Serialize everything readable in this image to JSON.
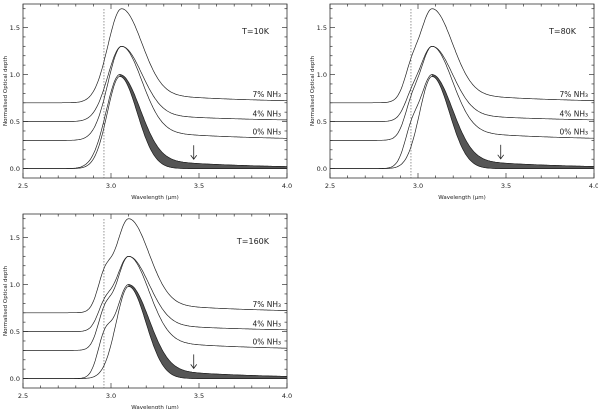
{
  "chart_data": [
    {
      "type": "line",
      "annotation": "T=10K",
      "xlabel": "Wavelength (μm)",
      "ylabel": "Normalised Optical depth",
      "xlim": [
        2.5,
        4.0
      ],
      "ylim": [
        -0.1,
        1.75
      ],
      "xticks": [
        "2.5",
        "3.0",
        "3.5",
        "4.0"
      ],
      "yticks": [
        "0.0",
        "0.5",
        "1.0",
        "1.5"
      ],
      "dotted_line_x": 2.96,
      "arrow_x": 3.47,
      "curve_labels": [
        "7% NH₃",
        "4% NH₃",
        "0% NH₃"
      ],
      "series": [
        {
          "offset": 0.7,
          "peak": 1.0,
          "peak_x": 3.06,
          "shoulder": 0.0
        },
        {
          "offset": 0.5,
          "peak": 0.8,
          "peak_x": 3.06,
          "shoulder": 0.0
        },
        {
          "offset": 0.3,
          "peak": 1.0,
          "peak_x": 3.06,
          "shoulder": 0.0
        },
        {
          "offset": 0.0,
          "peak": 1.0,
          "peak_x": 3.05,
          "shoulder": 0.0
        }
      ]
    },
    {
      "type": "line",
      "annotation": "T=80K",
      "xlabel": "Wavelength (μm)",
      "ylabel": "Normalised Optical depth",
      "xlim": [
        2.5,
        4.0
      ],
      "ylim": [
        -0.1,
        1.75
      ],
      "xticks": [
        "2.5",
        "3.0",
        "3.5",
        "4.0"
      ],
      "yticks": [
        "0.0",
        "0.5",
        "1.0",
        "1.5"
      ],
      "dotted_line_x": 2.96,
      "arrow_x": 3.47,
      "curve_labels": [
        "7% NH₃",
        "4% NH₃",
        "0% NH₃"
      ],
      "series": [
        {
          "offset": 0.7,
          "peak": 1.0,
          "peak_x": 3.08,
          "shoulder": 0.25
        },
        {
          "offset": 0.5,
          "peak": 0.8,
          "peak_x": 3.08,
          "shoulder": 0.2
        },
        {
          "offset": 0.3,
          "peak": 1.0,
          "peak_x": 3.08,
          "shoulder": 0.25
        },
        {
          "offset": 0.0,
          "peak": 1.0,
          "peak_x": 3.08,
          "shoulder": 0.3
        }
      ]
    },
    {
      "type": "line",
      "annotation": "T=160K",
      "xlabel": "Wavelength (μm)",
      "ylabel": "Normalised Optical depth",
      "xlim": [
        2.5,
        4.0
      ],
      "ylim": [
        -0.1,
        1.75
      ],
      "xticks": [
        "2.5",
        "3.0",
        "3.5",
        "4.0"
      ],
      "yticks": [
        "0.0",
        "0.5",
        "1.0",
        "1.5"
      ],
      "dotted_line_x": 2.96,
      "arrow_x": 3.47,
      "curve_labels": [
        "7% NH₃",
        "4% NH₃",
        "0% NH₃"
      ],
      "series": [
        {
          "offset": 0.7,
          "peak": 1.0,
          "peak_x": 3.1,
          "shoulder": 0.35
        },
        {
          "offset": 0.5,
          "peak": 0.8,
          "peak_x": 3.1,
          "shoulder": 0.3
        },
        {
          "offset": 0.3,
          "peak": 1.0,
          "peak_x": 3.1,
          "shoulder": 0.35
        },
        {
          "offset": 0.0,
          "peak": 1.0,
          "peak_x": 3.1,
          "shoulder": 0.4
        }
      ]
    }
  ]
}
